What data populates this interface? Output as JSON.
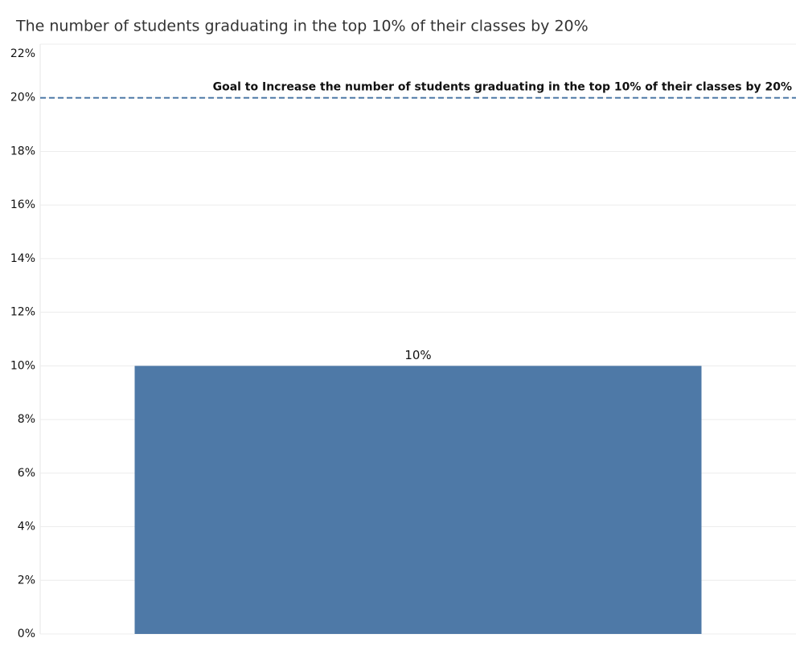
{
  "chart_data": {
    "type": "bar",
    "title": "The number of students graduating in the top 10% of their classes by 20%",
    "categories": [
      null
    ],
    "values": [
      10
    ],
    "value_labels": [
      "10%"
    ],
    "color": "#4e79a7",
    "ylim": [
      0,
      22
    ],
    "yticks": [
      {
        "value": 0,
        "label": "0%"
      },
      {
        "value": 2,
        "label": "2%"
      },
      {
        "value": 4,
        "label": "4%"
      },
      {
        "value": 6,
        "label": "6%"
      },
      {
        "value": 8,
        "label": "8%"
      },
      {
        "value": 10,
        "label": "10%"
      },
      {
        "value": 12,
        "label": "12%"
      },
      {
        "value": 14,
        "label": "14%"
      },
      {
        "value": 16,
        "label": "16%"
      },
      {
        "value": 18,
        "label": "18%"
      },
      {
        "value": 20,
        "label": "20%"
      },
      {
        "value": 22,
        "label": "22%"
      }
    ],
    "grid": true,
    "reference_line": {
      "value": 20,
      "label": "Goal to Increase the number of students graduating in the top 10% of their classes by 20%",
      "color": "#4e79a7"
    }
  }
}
